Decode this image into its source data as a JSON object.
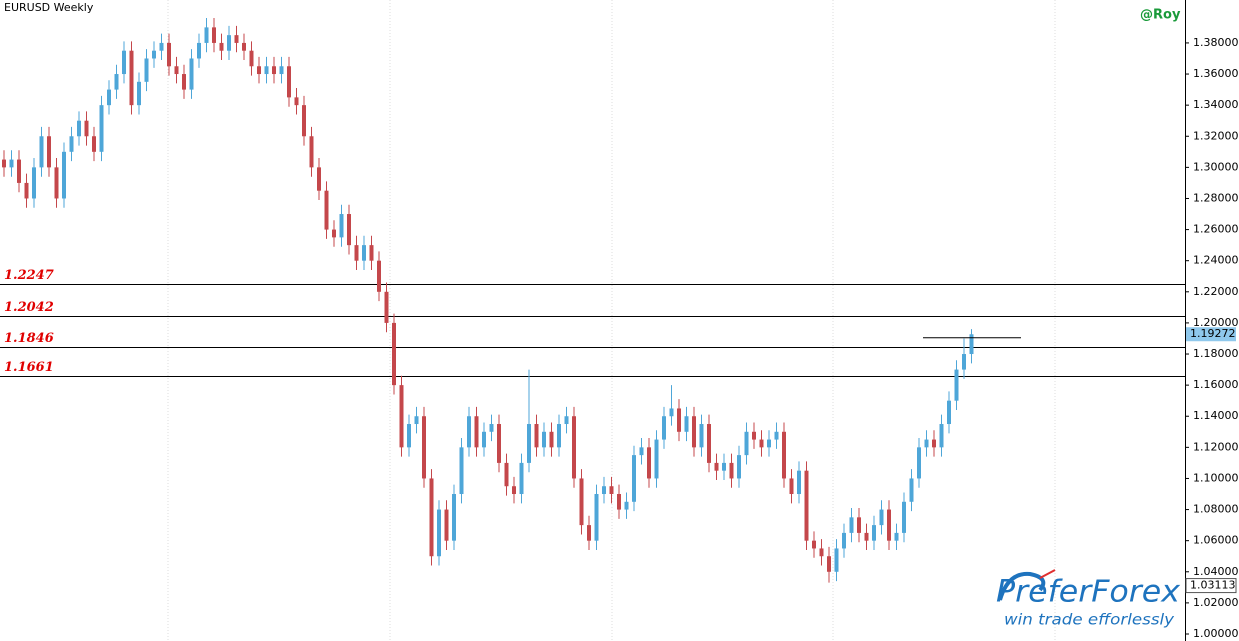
{
  "chart_data": {
    "type": "candlestick",
    "title": "EURUSD Weekly",
    "author": "@Roy",
    "ylim": [
      0.9955,
      1.4076
    ],
    "yticks": [
      {
        "value": 1.0,
        "label": "1.00000"
      },
      {
        "value": 1.02,
        "label": "1.02000"
      },
      {
        "value": 1.04,
        "label": "1.04000"
      },
      {
        "value": 1.06,
        "label": "1.06000"
      },
      {
        "value": 1.08,
        "label": "1.08000"
      },
      {
        "value": 1.1,
        "label": "1.10000"
      },
      {
        "value": 1.12,
        "label": "1.12000"
      },
      {
        "value": 1.14,
        "label": "1.14000"
      },
      {
        "value": 1.16,
        "label": "1.16000"
      },
      {
        "value": 1.18,
        "label": "1.18000"
      },
      {
        "value": 1.2,
        "label": "1.20000"
      },
      {
        "value": 1.22,
        "label": "1.22000"
      },
      {
        "value": 1.24,
        "label": "1.24000"
      },
      {
        "value": 1.26,
        "label": "1.26000"
      },
      {
        "value": 1.28,
        "label": "1.28000"
      },
      {
        "value": 1.3,
        "label": "1.30000"
      },
      {
        "value": 1.32,
        "label": "1.32000"
      },
      {
        "value": 1.34,
        "label": "1.34000"
      },
      {
        "value": 1.36,
        "label": "1.36000"
      },
      {
        "value": 1.38,
        "label": "1.38000"
      }
    ],
    "levels": [
      1.2247,
      1.2042,
      1.1846,
      1.1661
    ],
    "level_color": "#e00000",
    "trend_line": 1.1905,
    "current_price": 1.19272,
    "low_price": 1.03113,
    "up_color": "#4ea6d8",
    "down_color": "#c4474b",
    "open": [
      1.305,
      1.3,
      1.305,
      1.29,
      1.28,
      1.3,
      1.32,
      1.3,
      1.28,
      1.31,
      1.32,
      1.33,
      1.32,
      1.31,
      1.34,
      1.35,
      1.36,
      1.375,
      1.34,
      1.355,
      1.37,
      1.375,
      1.38,
      1.365,
      1.36,
      1.35,
      1.37,
      1.38,
      1.39,
      1.38,
      1.375,
      1.385,
      1.38,
      1.375,
      1.365,
      1.36,
      1.365,
      1.36,
      1.365,
      1.345,
      1.34,
      1.32,
      1.3,
      1.285,
      1.26,
      1.255,
      1.27,
      1.25,
      1.24,
      1.25,
      1.24,
      1.22,
      1.2,
      1.16,
      1.12,
      1.135,
      1.14,
      1.1,
      1.05,
      1.08,
      1.06,
      1.09,
      1.12,
      1.14,
      1.12,
      1.13,
      1.135,
      1.11,
      1.095,
      1.09,
      1.11,
      1.135,
      1.12,
      1.13,
      1.12,
      1.135,
      1.14,
      1.1,
      1.07,
      1.06,
      1.09,
      1.095,
      1.09,
      1.08,
      1.085,
      1.115,
      1.12,
      1.1,
      1.125,
      1.14,
      1.145,
      1.13,
      1.14,
      1.12,
      1.135,
      1.11,
      1.105,
      1.11,
      1.1,
      1.115,
      1.13,
      1.125,
      1.12,
      1.125,
      1.13,
      1.1,
      1.09,
      1.105,
      1.06,
      1.055,
      1.05,
      1.04,
      1.055,
      1.065,
      1.075,
      1.065,
      1.06,
      1.07,
      1.08,
      1.06,
      1.065,
      1.085,
      1.1,
      1.12,
      1.125,
      1.12,
      1.135,
      1.15,
      1.17,
      1.18
    ],
    "high": [
      1.311,
      1.311,
      1.311,
      1.296,
      1.306,
      1.326,
      1.326,
      1.306,
      1.316,
      1.326,
      1.336,
      1.336,
      1.326,
      1.346,
      1.356,
      1.366,
      1.381,
      1.381,
      1.361,
      1.376,
      1.381,
      1.386,
      1.386,
      1.371,
      1.366,
      1.376,
      1.386,
      1.396,
      1.396,
      1.386,
      1.391,
      1.391,
      1.386,
      1.381,
      1.371,
      1.371,
      1.371,
      1.371,
      1.371,
      1.351,
      1.346,
      1.326,
      1.306,
      1.291,
      1.266,
      1.276,
      1.276,
      1.256,
      1.256,
      1.256,
      1.246,
      1.226,
      1.206,
      1.166,
      1.141,
      1.146,
      1.146,
      1.106,
      1.086,
      1.086,
      1.096,
      1.126,
      1.146,
      1.146,
      1.136,
      1.141,
      1.141,
      1.116,
      1.101,
      1.116,
      1.17,
      1.141,
      1.136,
      1.136,
      1.141,
      1.146,
      1.146,
      1.106,
      1.076,
      1.096,
      1.101,
      1.101,
      1.096,
      1.091,
      1.121,
      1.126,
      1.126,
      1.131,
      1.146,
      1.16,
      1.151,
      1.146,
      1.146,
      1.141,
      1.141,
      1.116,
      1.116,
      1.116,
      1.121,
      1.136,
      1.136,
      1.131,
      1.131,
      1.136,
      1.136,
      1.106,
      1.111,
      1.111,
      1.066,
      1.061,
      1.056,
      1.061,
      1.071,
      1.081,
      1.081,
      1.071,
      1.076,
      1.086,
      1.086,
      1.071,
      1.091,
      1.106,
      1.126,
      1.131,
      1.131,
      1.141,
      1.156,
      1.176,
      1.19,
      1.196
    ],
    "low": [
      1.294,
      1.294,
      1.284,
      1.274,
      1.274,
      1.294,
      1.294,
      1.274,
      1.274,
      1.304,
      1.314,
      1.314,
      1.304,
      1.304,
      1.334,
      1.344,
      1.354,
      1.334,
      1.334,
      1.349,
      1.364,
      1.369,
      1.359,
      1.354,
      1.344,
      1.344,
      1.364,
      1.374,
      1.374,
      1.369,
      1.369,
      1.374,
      1.369,
      1.359,
      1.354,
      1.354,
      1.354,
      1.354,
      1.339,
      1.334,
      1.314,
      1.294,
      1.279,
      1.254,
      1.249,
      1.249,
      1.244,
      1.234,
      1.234,
      1.234,
      1.214,
      1.194,
      1.154,
      1.114,
      1.114,
      1.129,
      1.094,
      1.044,
      1.044,
      1.054,
      1.054,
      1.084,
      1.114,
      1.114,
      1.114,
      1.124,
      1.104,
      1.089,
      1.084,
      1.084,
      1.104,
      1.114,
      1.114,
      1.114,
      1.114,
      1.129,
      1.094,
      1.064,
      1.054,
      1.054,
      1.084,
      1.084,
      1.074,
      1.074,
      1.079,
      1.109,
      1.094,
      1.094,
      1.119,
      1.134,
      1.124,
      1.124,
      1.114,
      1.114,
      1.104,
      1.099,
      1.099,
      1.094,
      1.094,
      1.109,
      1.119,
      1.114,
      1.114,
      1.119,
      1.094,
      1.084,
      1.084,
      1.054,
      1.049,
      1.044,
      1.033,
      1.034,
      1.049,
      1.059,
      1.059,
      1.054,
      1.054,
      1.064,
      1.054,
      1.054,
      1.059,
      1.079,
      1.094,
      1.114,
      1.114,
      1.114,
      1.129,
      1.144,
      1.164,
      1.174
    ],
    "close": [
      1.3,
      1.305,
      1.29,
      1.28,
      1.3,
      1.32,
      1.3,
      1.28,
      1.31,
      1.32,
      1.33,
      1.32,
      1.31,
      1.34,
      1.35,
      1.36,
      1.375,
      1.34,
      1.355,
      1.37,
      1.375,
      1.38,
      1.365,
      1.36,
      1.35,
      1.37,
      1.38,
      1.39,
      1.38,
      1.375,
      1.385,
      1.38,
      1.375,
      1.365,
      1.36,
      1.365,
      1.36,
      1.365,
      1.345,
      1.34,
      1.32,
      1.3,
      1.285,
      1.26,
      1.255,
      1.27,
      1.25,
      1.24,
      1.25,
      1.24,
      1.22,
      1.2,
      1.16,
      1.12,
      1.135,
      1.14,
      1.1,
      1.05,
      1.08,
      1.06,
      1.09,
      1.12,
      1.14,
      1.12,
      1.13,
      1.135,
      1.11,
      1.095,
      1.09,
      1.11,
      1.135,
      1.12,
      1.13,
      1.12,
      1.135,
      1.14,
      1.1,
      1.07,
      1.06,
      1.09,
      1.095,
      1.09,
      1.08,
      1.085,
      1.115,
      1.12,
      1.1,
      1.125,
      1.14,
      1.145,
      1.13,
      1.14,
      1.12,
      1.135,
      1.11,
      1.105,
      1.11,
      1.1,
      1.115,
      1.13,
      1.125,
      1.12,
      1.125,
      1.13,
      1.1,
      1.09,
      1.105,
      1.06,
      1.055,
      1.05,
      1.04,
      1.055,
      1.065,
      1.075,
      1.065,
      1.06,
      1.07,
      1.08,
      1.06,
      1.065,
      1.085,
      1.1,
      1.12,
      1.125,
      1.12,
      1.135,
      1.15,
      1.17,
      1.18,
      1.1927
    ]
  },
  "logo": {
    "name": "PreferForex",
    "tagline": "win trade efforlessly"
  }
}
